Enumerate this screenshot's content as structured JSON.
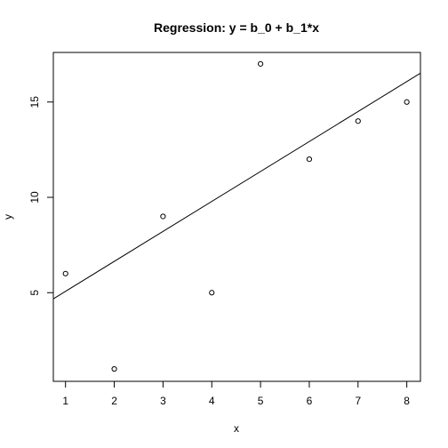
{
  "chart_data": {
    "type": "scatter",
    "title": "Regression: y = b_0 + b_1*x",
    "xlabel": "x",
    "ylabel": "y",
    "xlim": [
      0.75,
      8.28
    ],
    "ylim": [
      0.35,
      17.6
    ],
    "xticks": [
      1,
      2,
      3,
      4,
      5,
      6,
      7,
      8
    ],
    "yticks": [
      5,
      10,
      15
    ],
    "grid": false,
    "legend": "none",
    "points": [
      {
        "x": 1,
        "y": 6
      },
      {
        "x": 2,
        "y": 1
      },
      {
        "x": 3,
        "y": 9
      },
      {
        "x": 4,
        "y": 5
      },
      {
        "x": 5,
        "y": 17
      },
      {
        "x": 6,
        "y": 12
      },
      {
        "x": 7,
        "y": 14
      },
      {
        "x": 8,
        "y": 15
      }
    ],
    "regression": {
      "intercept": 3.5,
      "slope": 1.5714
    }
  }
}
